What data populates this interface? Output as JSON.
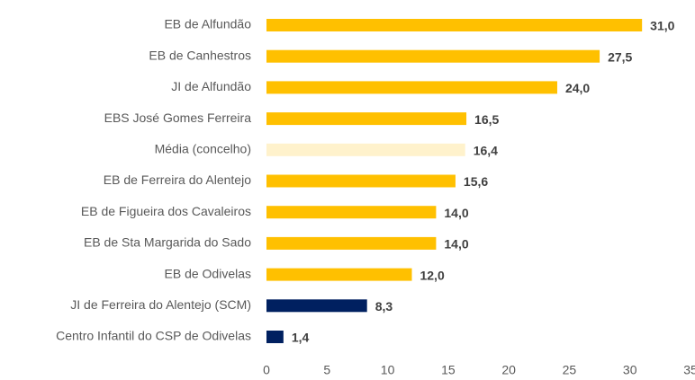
{
  "chart_data": {
    "type": "bar",
    "orientation": "horizontal",
    "categories": [
      "EB de Alfundão",
      "EB de Canhestros",
      "JI de Alfundão",
      "EBS José Gomes Ferreira",
      "Média (concelho)",
      "EB de Ferreira do Alentejo",
      "EB de Figueira dos Cavaleiros",
      "EB de Sta Margarida do Sado",
      "EB de Odivelas",
      "JI de Ferreira do Alentejo (SCM)",
      "Centro Infantil do CSP de Odivelas"
    ],
    "values": [
      31.0,
      27.5,
      24.0,
      16.5,
      16.4,
      15.6,
      14.0,
      14.0,
      12.0,
      8.3,
      1.4
    ],
    "value_labels": [
      "31,0",
      "27,5",
      "24,0",
      "16,5",
      "16,4",
      "15,6",
      "14,0",
      "14,0",
      "12,0",
      "8,3",
      "1,4"
    ],
    "colors": [
      "#FFC000",
      "#FFC000",
      "#FFC000",
      "#FFC000",
      "#FFF2CC",
      "#FFC000",
      "#FFC000",
      "#FFC000",
      "#FFC000",
      "#002060",
      "#002060"
    ],
    "xlim": [
      0,
      35
    ],
    "xticks": [
      0,
      5,
      10,
      15,
      20,
      25,
      30,
      35
    ],
    "grid": false
  }
}
